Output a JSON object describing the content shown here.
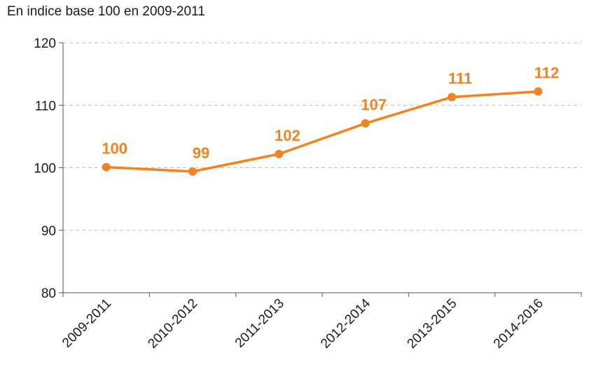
{
  "subtitle": "En indice base 100 en 2009-2011",
  "chart_data": {
    "type": "line",
    "title": "",
    "subtitle": "En indice base 100 en 2009-2011",
    "xlabel": "",
    "ylabel": "",
    "categories": [
      "2009-2011",
      "2010-2012",
      "2011-2013",
      "2012-2014",
      "2013-2015",
      "2014-2016"
    ],
    "series": [
      {
        "values": [
          100.1,
          99.4,
          102.2,
          107.1,
          111.3,
          112.2
        ],
        "labels": [
          "100",
          "99",
          "102",
          "107",
          "111",
          "112"
        ]
      }
    ],
    "ylim": [
      80,
      120
    ],
    "yticks": [
      "80",
      "90",
      "100",
      "110",
      "120"
    ],
    "grid": true,
    "color": "#f58220"
  }
}
